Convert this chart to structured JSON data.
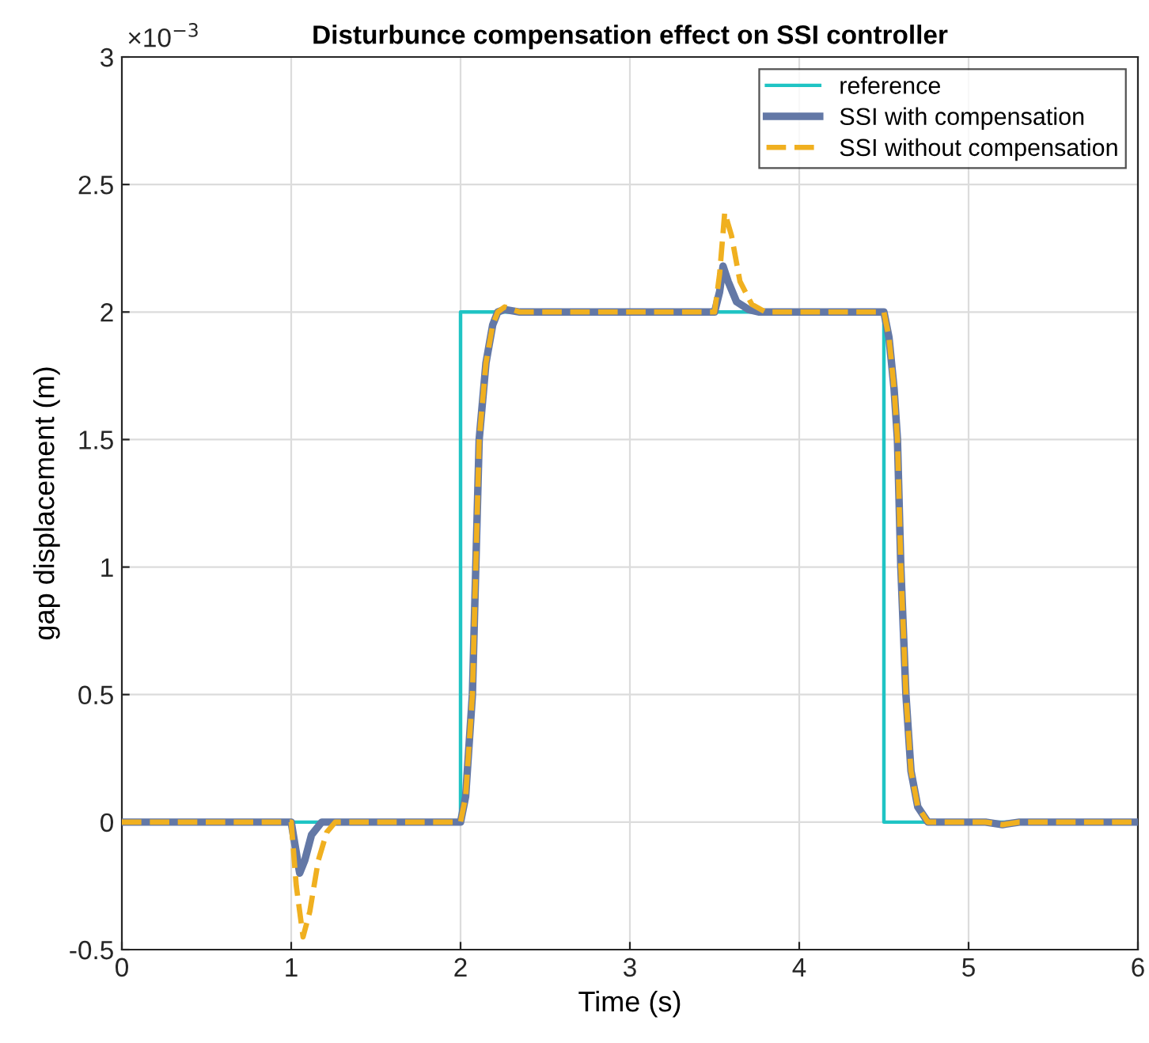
{
  "chart_data": {
    "type": "line",
    "title": "Disturbunce compensation effect on SSI controller",
    "xlabel": "Time (s)",
    "ylabel": "gap displacement (m)",
    "annotations": [
      "×10$^{−3}$"
    ],
    "xlim": [
      0,
      6
    ],
    "ylim": [
      -0.5,
      3
    ],
    "xticks": [
      0,
      1,
      2,
      3,
      4,
      5,
      6
    ],
    "yticks": [
      -0.5,
      0,
      0.5,
      1,
      1.5,
      2,
      2.5,
      3
    ],
    "grid": true,
    "legend": "top right",
    "series": [
      {
        "name": "reference",
        "color": "#1fc4c4",
        "line_style": "solid",
        "x": [
          0,
          2,
          2,
          4.5,
          4.5,
          6
        ],
        "values": [
          0,
          0,
          2,
          2,
          0,
          0
        ]
      },
      {
        "name": "SSI with compensation",
        "color": "#6378a6",
        "line_style": "solid",
        "x": [
          0,
          1.0,
          1.02,
          1.05,
          1.08,
          1.12,
          1.18,
          1.25,
          2.0,
          2.03,
          2.07,
          2.09,
          2.11,
          2.15,
          2.19,
          2.22,
          2.26,
          2.35,
          3.5,
          3.53,
          3.55,
          3.58,
          3.63,
          3.7,
          3.76,
          4.5,
          4.53,
          4.56,
          4.58,
          4.6,
          4.63,
          4.66,
          4.7,
          4.76,
          5.1,
          5.2,
          5.3,
          6
        ],
        "values": [
          0,
          0,
          -0.08,
          -0.2,
          -0.15,
          -0.05,
          0,
          0,
          0,
          0.1,
          0.5,
          1,
          1.5,
          1.8,
          1.95,
          2,
          2.01,
          2,
          2,
          2.08,
          2.18,
          2.12,
          2.04,
          2.01,
          2,
          2,
          1.9,
          1.7,
          1.5,
          1,
          0.5,
          0.2,
          0.06,
          0,
          0,
          -0.01,
          0,
          0
        ]
      },
      {
        "name": "SSI without compensation",
        "color": "#f0b020",
        "line_style": "dashed",
        "x": [
          0,
          1.0,
          1.03,
          1.07,
          1.11,
          1.16,
          1.21,
          1.26,
          1.3,
          2.0,
          2.03,
          2.07,
          2.09,
          2.11,
          2.15,
          2.19,
          2.22,
          2.26,
          2.35,
          3.5,
          3.53,
          3.56,
          3.6,
          3.65,
          3.72,
          3.8,
          4.5,
          4.53,
          4.56,
          4.58,
          4.6,
          4.63,
          4.66,
          4.7,
          4.76,
          5.1,
          5.2,
          5.3,
          6
        ],
        "values": [
          0,
          0,
          -0.25,
          -0.45,
          -0.35,
          -0.15,
          -0.04,
          0,
          0,
          0,
          0.1,
          0.5,
          1,
          1.5,
          1.8,
          1.95,
          2,
          2.02,
          2,
          2,
          2.15,
          2.39,
          2.3,
          2.12,
          2.03,
          2,
          2,
          1.9,
          1.7,
          1.5,
          1,
          0.5,
          0.2,
          0.06,
          0,
          0,
          -0.01,
          0,
          0
        ]
      }
    ]
  }
}
